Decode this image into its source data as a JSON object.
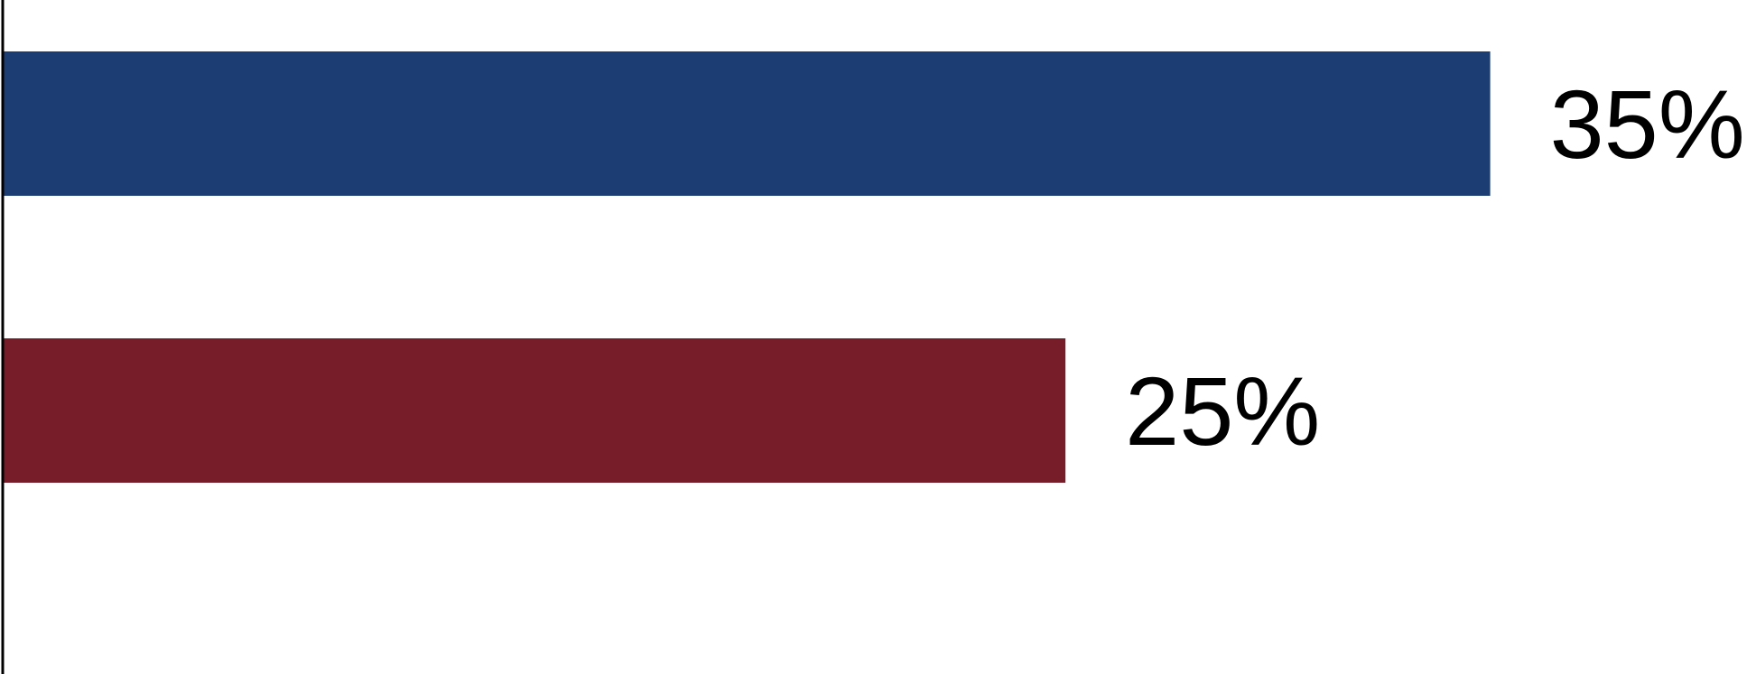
{
  "chart_data": {
    "type": "bar",
    "orientation": "horizontal",
    "title": "",
    "xlabel": "",
    "ylabel": "",
    "categories": [
      "",
      ""
    ],
    "values": [
      35,
      25
    ],
    "value_labels": [
      "35%",
      "25%"
    ],
    "colors": [
      "#1b3d73",
      "#771d29"
    ],
    "xlim": [
      0,
      35.2
    ],
    "grid": false,
    "legend": "none"
  }
}
